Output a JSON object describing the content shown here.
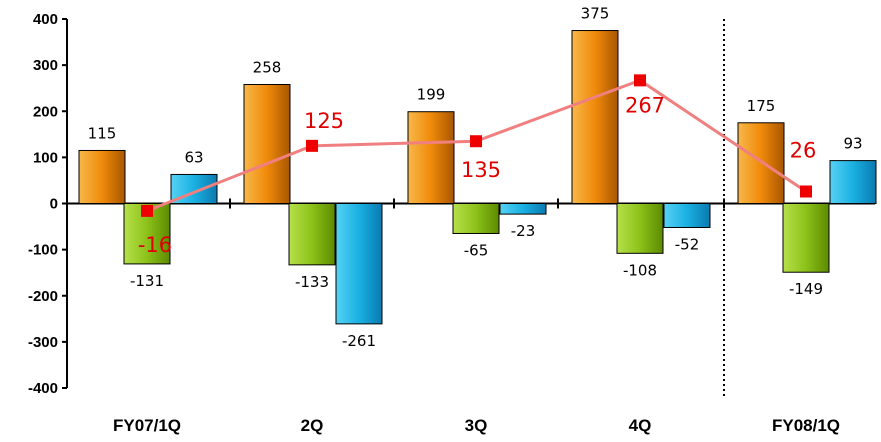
{
  "chart_data": {
    "type": "bar",
    "categories": [
      "FY07/1Q",
      "2Q",
      "3Q",
      "4Q",
      "FY08/1Q"
    ],
    "ylim": [
      -400,
      400
    ],
    "yticks": [
      400,
      300,
      200,
      100,
      0,
      -100,
      -200,
      -300,
      -400
    ],
    "grid": false,
    "legend": "none",
    "series": [
      {
        "type": "bar",
        "color": "#f0900c",
        "values": [
          115,
          258,
          199,
          375,
          175
        ]
      },
      {
        "type": "bar",
        "color": "#94c81c",
        "values": [
          -131,
          -133,
          -65,
          -108,
          -149
        ]
      },
      {
        "type": "bar",
        "color": "#18b4e4",
        "values": [
          63,
          -261,
          -23,
          -52,
          93
        ]
      },
      {
        "type": "line",
        "color": "#f08080",
        "marker_color": "#ee0000",
        "values": [
          -16,
          125,
          135,
          267,
          26
        ]
      }
    ],
    "divider_after_category": 3
  }
}
